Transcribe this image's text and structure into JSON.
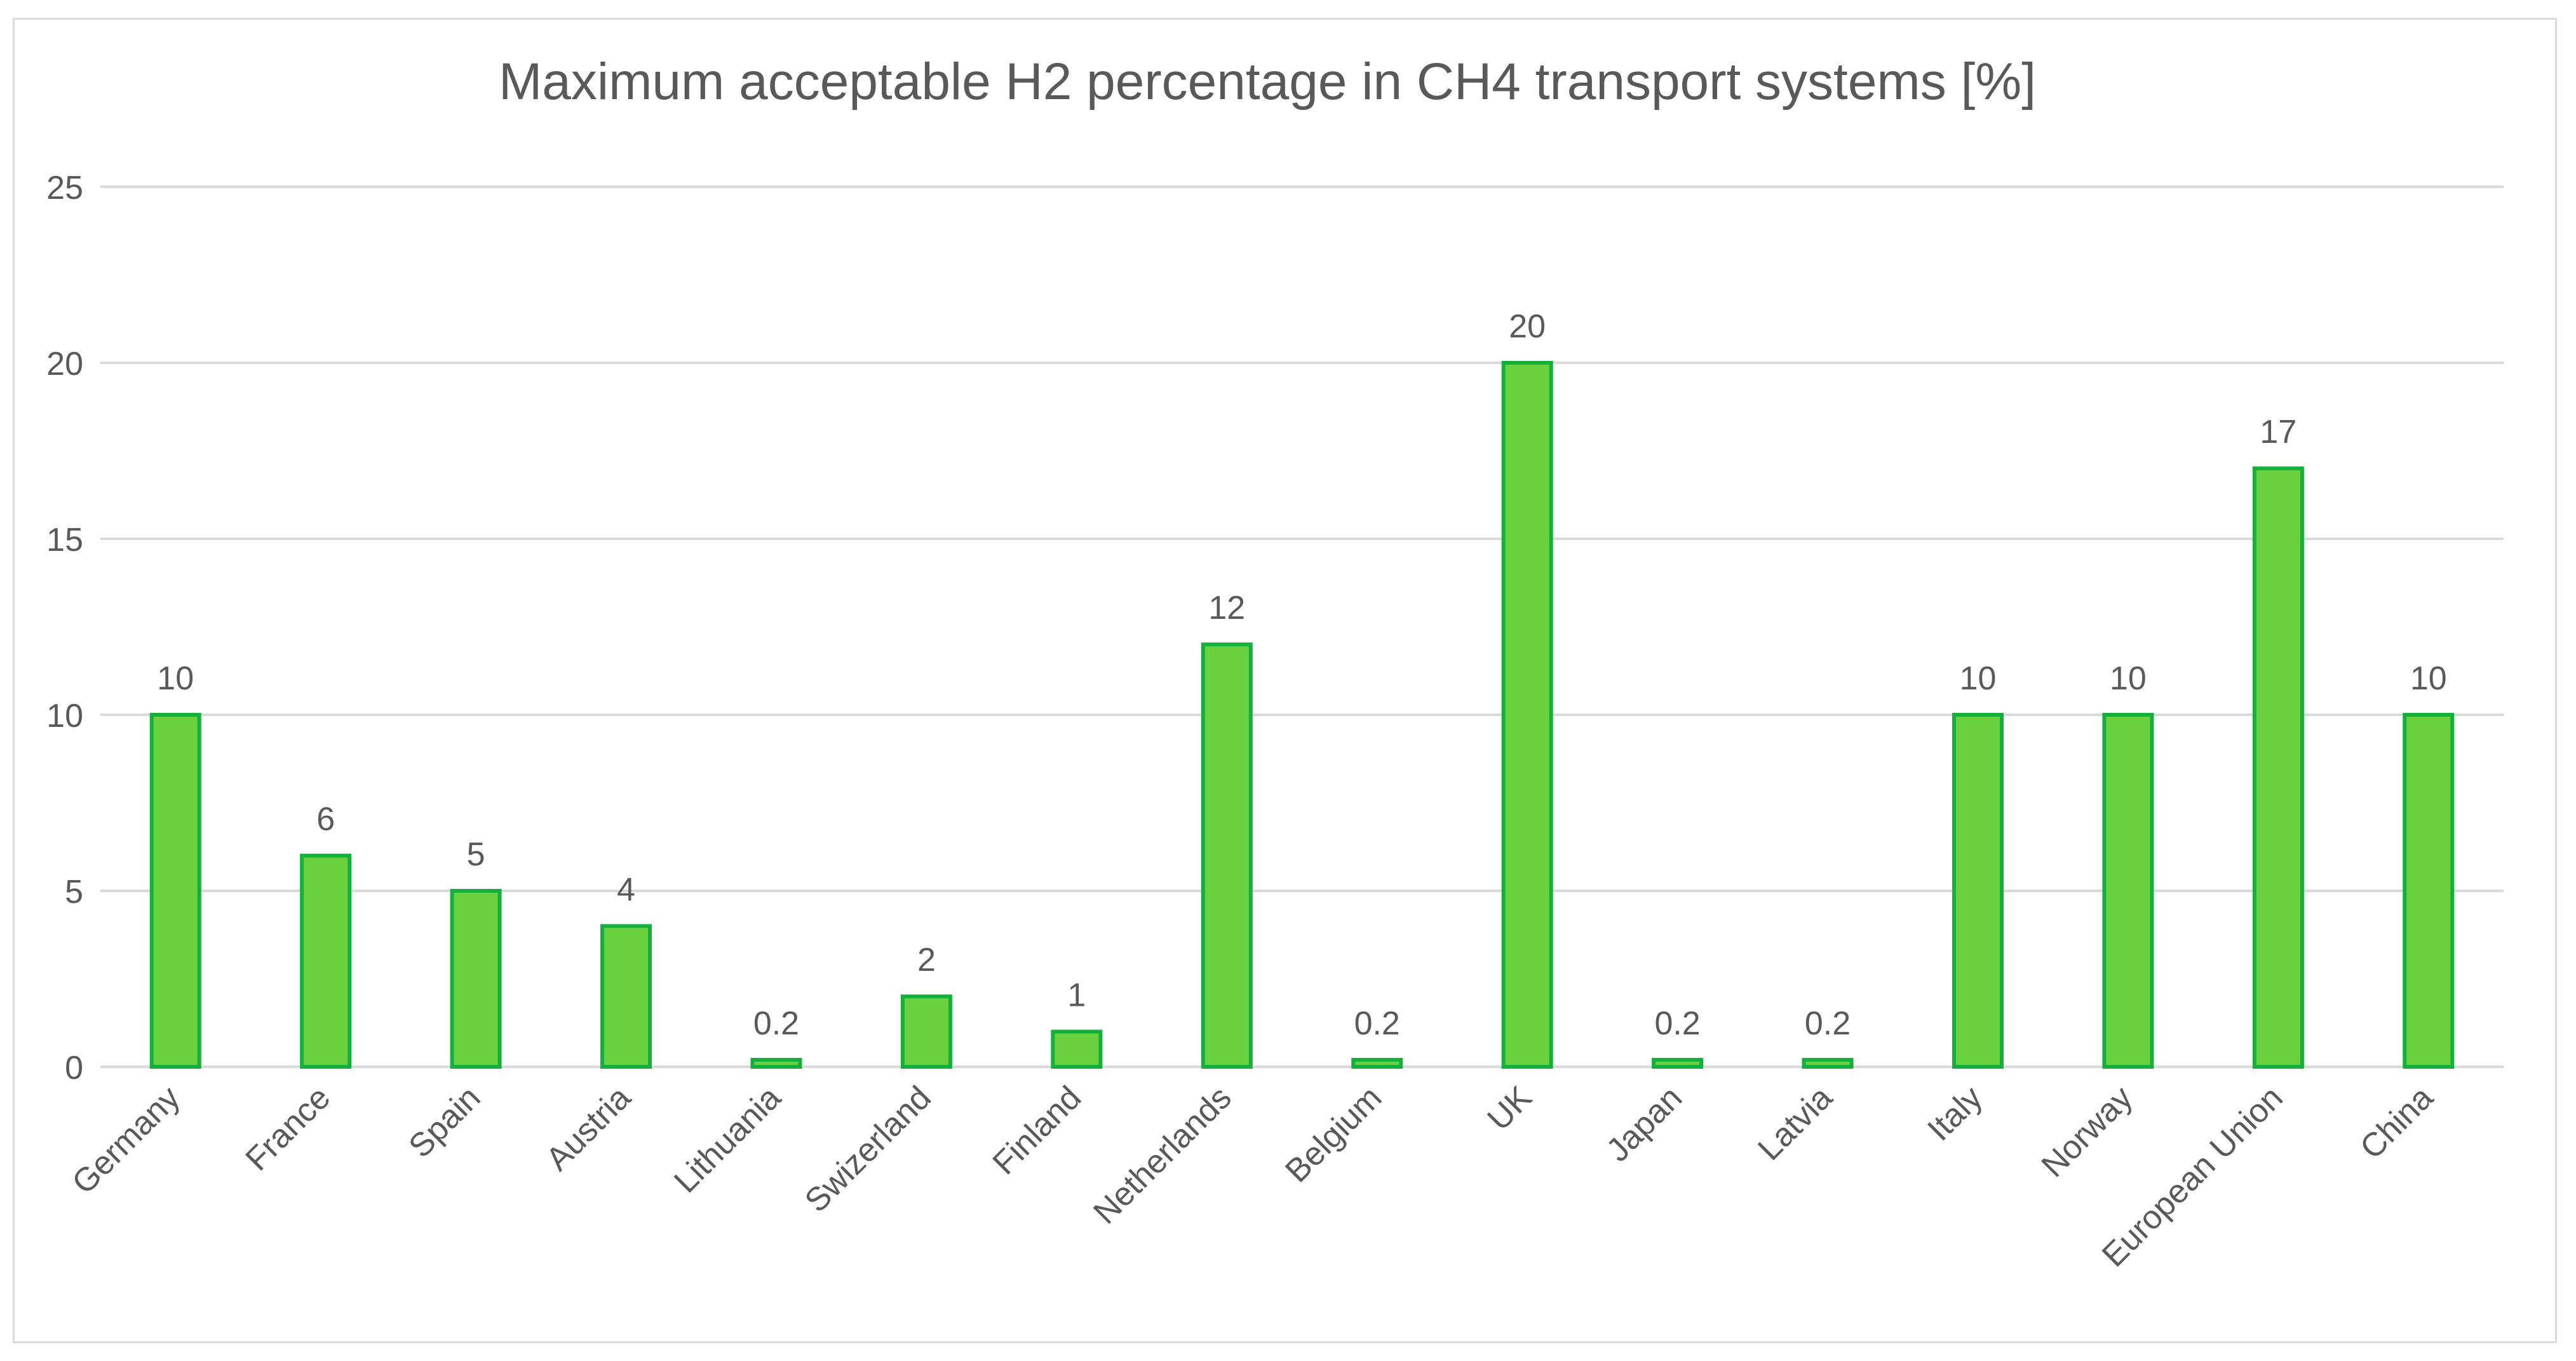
{
  "chart_data": {
    "type": "bar",
    "title": "Maximum acceptable H2 percentage in CH4  transport systems  [%]",
    "xlabel": "",
    "ylabel": "",
    "categories": [
      "Germany",
      "France",
      "Spain",
      "Austria",
      "Lithuania",
      "Swizerland",
      "Finland",
      "Netherlands",
      "Belgium",
      "UK",
      "Japan",
      "Latvia",
      "Italy",
      "Norway",
      "European Union",
      "China"
    ],
    "values": [
      10,
      6,
      5,
      4,
      0.2,
      2,
      1,
      12,
      0.2,
      20,
      0.2,
      0.2,
      10,
      10,
      17,
      10
    ],
    "data_labels": [
      "10",
      "6",
      "5",
      "4",
      "0.2",
      "2",
      "1",
      "12",
      "0.2",
      "20",
      "0.2",
      "0.2",
      "10",
      "10",
      "17",
      "10"
    ],
    "ylim": [
      0,
      25
    ],
    "yticks": [
      0,
      5,
      10,
      15,
      20,
      25
    ],
    "grid": true,
    "legend": "none",
    "bar_fill": "#6ad23f",
    "bar_stroke": "#14b03c",
    "gridline_color": "#d9d9d9",
    "text_color": "#595959"
  }
}
